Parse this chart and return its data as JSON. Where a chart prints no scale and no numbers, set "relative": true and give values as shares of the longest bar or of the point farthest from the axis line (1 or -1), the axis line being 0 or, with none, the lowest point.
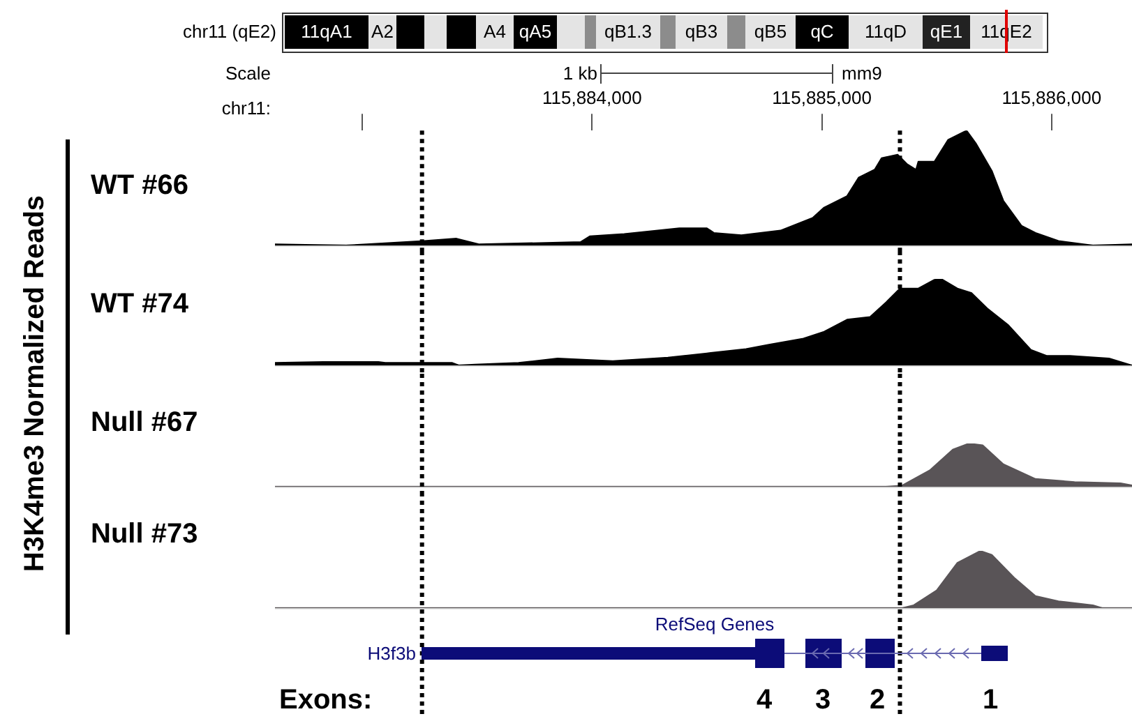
{
  "chart_data": [
    {
      "type": "area",
      "title": "WT #66",
      "xlabel": "chr11:",
      "ylabel": "H3K4me3 Normalized Reads",
      "relative": true,
      "color": "#000000",
      "tick_labels": "x",
      "annotations": [
        "chr11 (qE2)",
        "11qA1",
        "A2",
        "A4",
        "qA5",
        "qB1.3",
        "qB3",
        "qB5",
        "qC",
        "11qD",
        "qE1",
        "11qE2",
        "Scale",
        "1 kb",
        "mm9"
      ],
      "x": [
        115882620,
        115882930,
        115883270,
        115883410,
        115883510,
        115883950,
        115883990,
        115884140,
        115884380,
        115884500,
        115884530,
        115884650,
        115884820,
        115884960,
        115885010,
        115885110,
        115885160,
        115885230,
        115885260,
        115885330,
        115885370,
        115885410,
        115885420,
        115885490,
        115885550,
        115885630,
        115885670,
        115885740,
        115885790,
        115885870,
        115885930,
        115886030,
        115886180,
        115886350
      ],
      "values": [
        0.01,
        0,
        0.04,
        0.06,
        0.01,
        0.03,
        0.08,
        0.1,
        0.15,
        0.15,
        0.11,
        0.09,
        0.13,
        0.24,
        0.33,
        0.43,
        0.59,
        0.66,
        0.76,
        0.79,
        0.71,
        0.66,
        0.73,
        0.73,
        0.92,
        1,
        0.89,
        0.65,
        0.39,
        0.17,
        0.11,
        0.04,
        0,
        0.01
      ],
      "xlim": [
        115882620,
        115886350
      ],
      "xticks": [
        {
          "value": 115883000,
          "label": null
        },
        {
          "value": 115884000,
          "label": "115,884,000"
        },
        {
          "value": 115885000,
          "label": "115,885,000"
        },
        {
          "value": 115886000,
          "label": "115,886,000"
        }
      ],
      "ref_lines": [
        {
          "axis": "x",
          "value": 115883260,
          "color": "#000000",
          "line_style": "dotted"
        },
        {
          "axis": "x",
          "value": 115885340,
          "color": "#000000",
          "line_style": "dotted"
        }
      ]
    },
    {
      "type": "area",
      "title": "WT #74",
      "relative": true,
      "color": "#000000",
      "tick_labels": false,
      "x": [
        115882620,
        115882830,
        115883070,
        115883100,
        115883390,
        115883420,
        115883490,
        115883680,
        115883850,
        115884090,
        115884330,
        115884500,
        115884670,
        115884770,
        115884920,
        115885010,
        115885110,
        115885210,
        115885280,
        115885340,
        115885420,
        115885490,
        115885520,
        115885590,
        115885650,
        115885720,
        115885810,
        115885910,
        115885980,
        115886080,
        115886250,
        115886350
      ],
      "values": [
        0.03,
        0.04,
        0.04,
        0.03,
        0.03,
        0,
        0.01,
        0.03,
        0.08,
        0.05,
        0.09,
        0.14,
        0.19,
        0.24,
        0.31,
        0.39,
        0.53,
        0.56,
        0.73,
        0.89,
        0.89,
        0.99,
        1,
        0.89,
        0.84,
        0.66,
        0.47,
        0.18,
        0.11,
        0.11,
        0.08,
        0
      ],
      "xlim": [
        115882620,
        115886350
      ],
      "ref_lines": [
        {
          "axis": "x",
          "value": 115883260,
          "color": "#000000",
          "line_style": "dotted"
        },
        {
          "axis": "x",
          "value": 115885340,
          "color": "#000000",
          "line_style": "dotted"
        }
      ]
    },
    {
      "type": "area",
      "title": "Null #67",
      "relative": true,
      "color": "#595457",
      "tick_labels": false,
      "x": [
        115882620,
        115885280,
        115885350,
        115885470,
        115885570,
        115885640,
        115885700,
        115885790,
        115885930,
        115886100,
        115886300,
        115886350
      ],
      "values": [
        0,
        0,
        0.03,
        0.38,
        0.86,
        1,
        0.96,
        0.52,
        0.18,
        0.11,
        0.08,
        0.03
      ],
      "xlim": [
        115882620,
        115886350
      ],
      "ref_lines": [
        {
          "axis": "x",
          "value": 115883260,
          "color": "#000000",
          "line_style": "dotted"
        },
        {
          "axis": "x",
          "value": 115885340,
          "color": "#000000",
          "line_style": "dotted"
        }
      ]
    },
    {
      "type": "area",
      "title": "Null #73",
      "relative": true,
      "color": "#595457",
      "tick_labels": false,
      "annotations": [
        "RefSeq Genes",
        "H3f3b",
        "Exons:",
        "4",
        "3",
        "2",
        "1"
      ],
      "x": [
        115882620,
        115885350,
        115885400,
        115885500,
        115885590,
        115885690,
        115885740,
        115885840,
        115885930,
        115886030,
        115886180,
        115886220,
        115886350
      ],
      "values": [
        0,
        0,
        0.05,
        0.31,
        0.79,
        1,
        0.93,
        0.52,
        0.21,
        0.12,
        0.05,
        0,
        0
      ],
      "xlim": [
        115882620,
        115886350
      ],
      "ref_lines": [
        {
          "axis": "x",
          "value": 115883260,
          "color": "#000000",
          "line_style": "dotted"
        },
        {
          "axis": "x",
          "value": 115885340,
          "color": "#000000",
          "line_style": "dotted"
        }
      ]
    }
  ]
}
